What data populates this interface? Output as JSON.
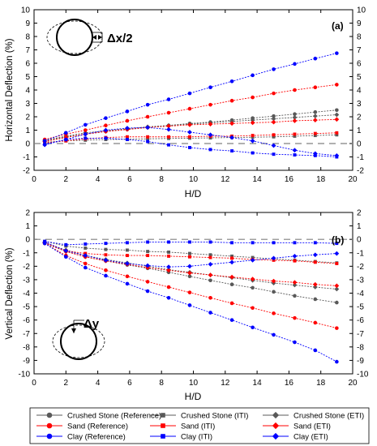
{
  "colors": {
    "gray": "#595959",
    "red": "#ff0000",
    "blue": "#0000ff",
    "ref_line": "#808080"
  },
  "legend": {
    "items": [
      {
        "label": "Crushed Stone (Reference)",
        "color": "#595959",
        "marker": "circle"
      },
      {
        "label": "Sand (Reference)",
        "color": "#ff0000",
        "marker": "circle"
      },
      {
        "label": "Clay (Reference)",
        "color": "#0000ff",
        "marker": "circle"
      },
      {
        "label": "Crushed Stone (ITI)",
        "color": "#595959",
        "marker": "square"
      },
      {
        "label": "Sand (ITI)",
        "color": "#ff0000",
        "marker": "square"
      },
      {
        "label": "Clay (ITI)",
        "color": "#0000ff",
        "marker": "square"
      },
      {
        "label": "Crushed Stone (ETI)",
        "color": "#595959",
        "marker": "diamond"
      },
      {
        "label": "Sand (ETI)",
        "color": "#ff0000",
        "marker": "diamond"
      },
      {
        "label": "Clay (ETI)",
        "color": "#0000ff",
        "marker": "diamond"
      }
    ]
  },
  "chart_data": [
    {
      "type": "line",
      "panel_label": "(a)",
      "xlabel": "H/D",
      "ylabel": "Horizontal Deflection (%)",
      "inset_label": "Δx/2",
      "xlim": [
        0,
        20
      ],
      "ylim": [
        -2,
        10
      ],
      "xticks": [
        "0",
        "2",
        "4",
        "6",
        "8",
        "10",
        "12",
        "14",
        "16",
        "18",
        "20"
      ],
      "yticks": [
        "-2",
        "-1",
        "0",
        "1",
        "2",
        "3",
        "4",
        "5",
        "6",
        "7",
        "8",
        "9",
        "10"
      ],
      "x": [
        0.67,
        2.0,
        3.22,
        4.5,
        5.85,
        7.13,
        8.45,
        9.77,
        11.07,
        12.42,
        13.72,
        15.04,
        16.36,
        17.65,
        19.0
      ],
      "series": [
        {
          "name": "Crushed Stone (Reference)",
          "color": "#595959",
          "marker": "circle",
          "values": [
            0.2,
            0.5,
            0.7,
            0.9,
            1.05,
            1.2,
            1.35,
            1.5,
            1.6,
            1.75,
            1.9,
            2.05,
            2.2,
            2.35,
            2.5
          ]
        },
        {
          "name": "Crushed Stone (ITI)",
          "color": "#595959",
          "marker": "square",
          "values": [
            0.1,
            0.2,
            0.25,
            0.3,
            0.32,
            0.35,
            0.38,
            0.4,
            0.42,
            0.45,
            0.47,
            0.5,
            0.55,
            0.6,
            0.65
          ]
        },
        {
          "name": "Crushed Stone (ETI)",
          "color": "#595959",
          "marker": "diamond",
          "values": [
            0.25,
            0.55,
            0.8,
            0.95,
            1.1,
            1.25,
            1.35,
            1.45,
            1.55,
            1.65,
            1.75,
            1.85,
            1.95,
            2.05,
            2.15
          ]
        },
        {
          "name": "Sand (Reference)",
          "color": "#ff0000",
          "marker": "circle",
          "values": [
            0.3,
            0.7,
            1.0,
            1.35,
            1.7,
            2.0,
            2.3,
            2.6,
            2.9,
            3.2,
            3.45,
            3.75,
            4.0,
            4.2,
            4.4
          ]
        },
        {
          "name": "Sand (ITI)",
          "color": "#ff0000",
          "marker": "square",
          "values": [
            0.05,
            0.2,
            0.35,
            0.45,
            0.5,
            0.5,
            0.5,
            0.5,
            0.55,
            0.55,
            0.6,
            0.65,
            0.7,
            0.75,
            0.8
          ]
        },
        {
          "name": "Sand (ETI)",
          "color": "#ff0000",
          "marker": "diamond",
          "values": [
            0.15,
            0.45,
            0.7,
            0.9,
            1.05,
            1.2,
            1.3,
            1.4,
            1.45,
            1.5,
            1.55,
            1.6,
            1.7,
            1.75,
            1.8
          ]
        },
        {
          "name": "Clay (Reference)",
          "color": "#0000ff",
          "marker": "circle",
          "values": [
            0.2,
            0.8,
            1.4,
            1.9,
            2.4,
            2.9,
            3.3,
            3.75,
            4.2,
            4.65,
            5.1,
            5.55,
            5.95,
            6.35,
            6.75
          ]
        },
        {
          "name": "Clay (ITI)",
          "color": "#0000ff",
          "marker": "square",
          "values": [
            -0.05,
            0.3,
            0.4,
            0.4,
            0.3,
            0.15,
            -0.1,
            -0.3,
            -0.45,
            -0.55,
            -0.7,
            -0.8,
            -0.85,
            -0.9,
            -1.0
          ]
        },
        {
          "name": "Clay (ETI)",
          "color": "#0000ff",
          "marker": "diamond",
          "values": [
            -0.1,
            0.3,
            0.7,
            1.0,
            1.15,
            1.2,
            1.05,
            0.85,
            0.65,
            0.45,
            0.2,
            -0.15,
            -0.5,
            -0.75,
            -0.9
          ]
        }
      ]
    },
    {
      "type": "line",
      "panel_label": "(b)",
      "xlabel": "H/D",
      "ylabel": "Vertical Deflection (%)",
      "inset_label": "Δy",
      "xlim": [
        0,
        20
      ],
      "ylim": [
        -10,
        2
      ],
      "xticks": [
        "0",
        "2",
        "4",
        "6",
        "8",
        "10",
        "12",
        "14",
        "16",
        "18",
        "20"
      ],
      "yticks": [
        "-10",
        "-9",
        "-8",
        "-7",
        "-6",
        "-5",
        "-4",
        "-3",
        "-2",
        "-1",
        "0",
        "1",
        "2"
      ],
      "x": [
        0.67,
        2.0,
        3.22,
        4.5,
        5.85,
        7.13,
        8.45,
        9.77,
        11.07,
        12.42,
        13.72,
        15.04,
        16.36,
        17.65,
        19.0
      ],
      "series": [
        {
          "name": "Crushed Stone (Reference)",
          "color": "#595959",
          "marker": "circle",
          "values": [
            -0.3,
            -0.9,
            -1.3,
            -1.6,
            -1.9,
            -2.15,
            -2.45,
            -2.75,
            -3.05,
            -3.35,
            -3.6,
            -3.9,
            -4.2,
            -4.45,
            -4.7
          ]
        },
        {
          "name": "Crushed Stone (ITI)",
          "color": "#595959",
          "marker": "square",
          "values": [
            -0.15,
            -0.5,
            -0.65,
            -0.75,
            -0.8,
            -0.9,
            -0.95,
            -1.05,
            -1.15,
            -1.25,
            -1.35,
            -1.45,
            -1.55,
            -1.65,
            -1.75
          ]
        },
        {
          "name": "Crushed Stone (ETI)",
          "color": "#595959",
          "marker": "diamond",
          "values": [
            -0.25,
            -0.8,
            -1.2,
            -1.5,
            -1.75,
            -2.0,
            -2.25,
            -2.45,
            -2.65,
            -2.85,
            -3.05,
            -3.25,
            -3.4,
            -3.55,
            -3.7
          ]
        },
        {
          "name": "Sand (Reference)",
          "color": "#ff0000",
          "marker": "circle",
          "values": [
            -0.3,
            -1.2,
            -1.8,
            -2.3,
            -2.75,
            -3.15,
            -3.55,
            -3.95,
            -4.35,
            -4.75,
            -5.1,
            -5.5,
            -5.85,
            -6.2,
            -6.6
          ]
        },
        {
          "name": "Sand (ITI)",
          "color": "#ff0000",
          "marker": "square",
          "values": [
            -0.2,
            -0.85,
            -1.05,
            -1.15,
            -1.2,
            -1.2,
            -1.25,
            -1.3,
            -1.35,
            -1.4,
            -1.5,
            -1.55,
            -1.6,
            -1.7,
            -1.8
          ]
        },
        {
          "name": "Sand (ETI)",
          "color": "#ff0000",
          "marker": "diamond",
          "values": [
            -0.25,
            -0.9,
            -1.3,
            -1.6,
            -1.85,
            -2.1,
            -2.3,
            -2.5,
            -2.65,
            -2.8,
            -2.95,
            -3.1,
            -3.2,
            -3.35,
            -3.45
          ]
        },
        {
          "name": "Clay (Reference)",
          "color": "#0000ff",
          "marker": "circle",
          "values": [
            -0.3,
            -1.3,
            -2.1,
            -2.7,
            -3.3,
            -3.85,
            -4.35,
            -4.9,
            -5.45,
            -6.0,
            -6.55,
            -7.1,
            -7.65,
            -8.25,
            -9.1
          ]
        },
        {
          "name": "Clay (ITI)",
          "color": "#0000ff",
          "marker": "square",
          "values": [
            -0.15,
            -0.4,
            -0.35,
            -0.3,
            -0.25,
            -0.2,
            -0.2,
            -0.2,
            -0.2,
            -0.25,
            -0.25,
            -0.25,
            -0.25,
            -0.25,
            -0.3
          ]
        },
        {
          "name": "Clay (ETI)",
          "color": "#0000ff",
          "marker": "diamond",
          "values": [
            -0.2,
            -0.85,
            -1.2,
            -1.55,
            -1.8,
            -1.95,
            -2.05,
            -2.0,
            -1.85,
            -1.7,
            -1.55,
            -1.4,
            -1.25,
            -1.15,
            -1.05
          ]
        }
      ]
    }
  ]
}
